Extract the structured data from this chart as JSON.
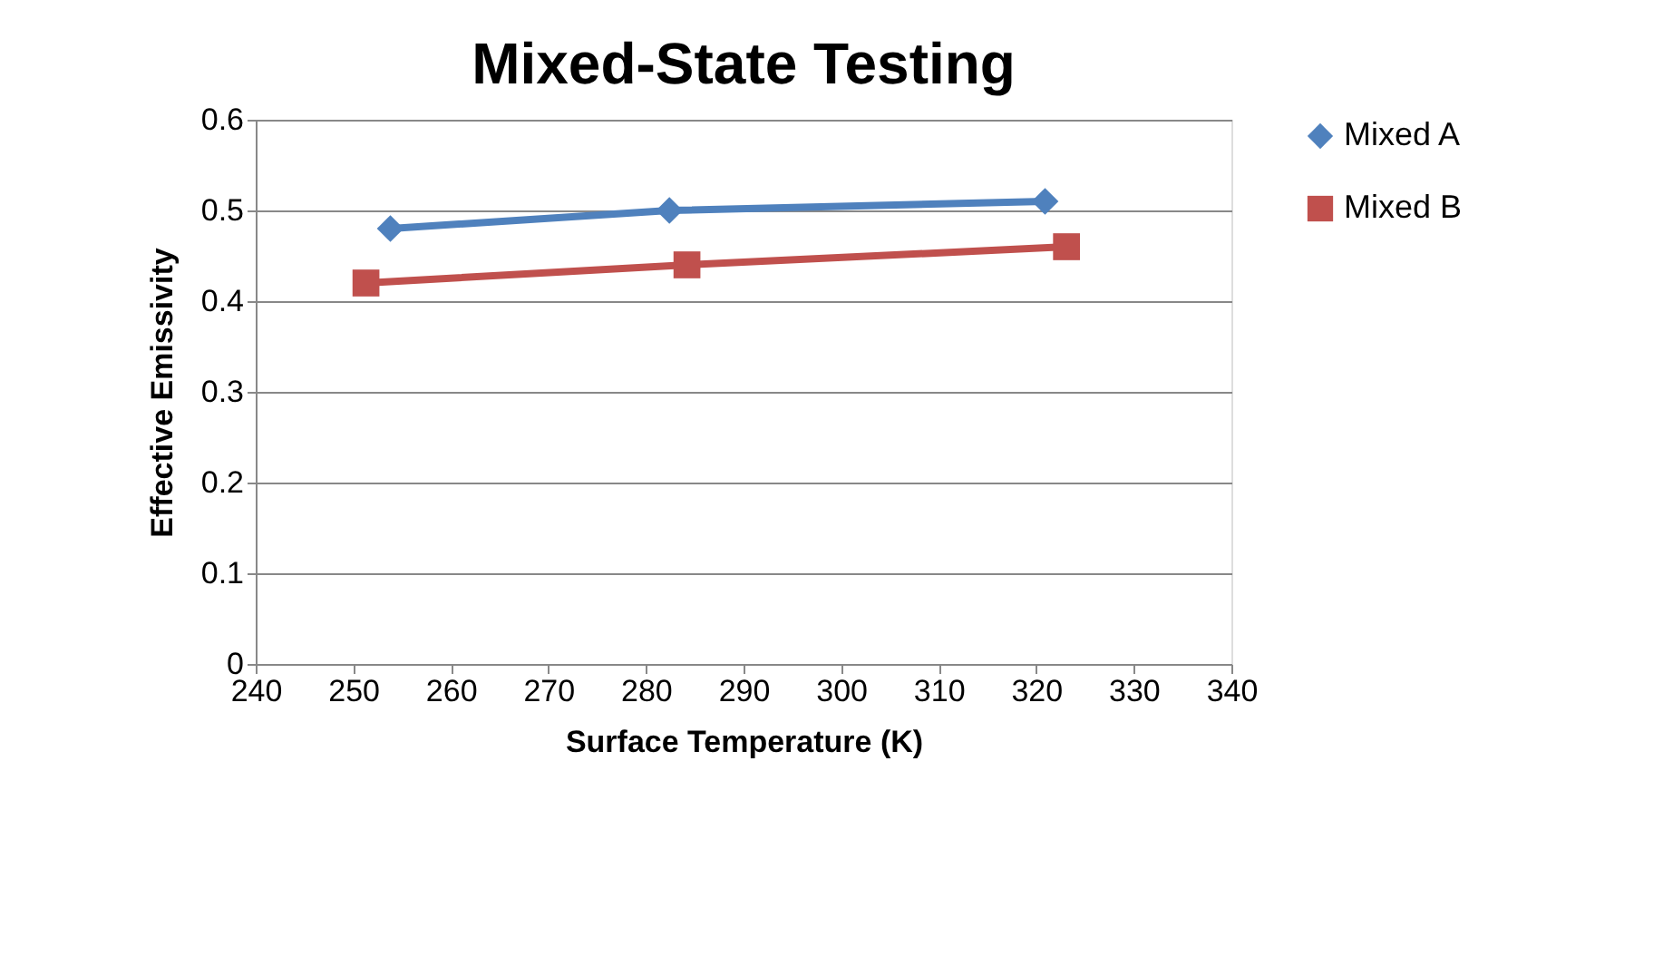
{
  "chart_data": {
    "type": "line",
    "title": "Mixed-State Testing",
    "xlabel": "Surface Temperature (K)",
    "ylabel": "Effective Emissivity",
    "series": [
      {
        "name": "Mixed A",
        "color": "#4f81bd",
        "marker": "diamond",
        "x": [
          253.8,
          282.4,
          320.9
        ],
        "values": [
          0.48,
          0.5,
          0.51
        ]
      },
      {
        "name": "Mixed B",
        "color": "#c0504d",
        "marker": "square",
        "x": [
          251.3,
          284.2,
          323.1
        ],
        "values": [
          0.42,
          0.44,
          0.46
        ]
      }
    ],
    "xlim": [
      240,
      340
    ],
    "xticks": [
      240,
      250,
      260,
      270,
      280,
      290,
      300,
      310,
      320,
      330,
      340
    ],
    "ylim": [
      0,
      0.6
    ],
    "yticks": [
      0,
      0.1,
      0.2,
      0.3,
      0.4,
      0.5,
      0.6
    ],
    "grid": "y",
    "legend": "right",
    "line_style": "solid"
  }
}
